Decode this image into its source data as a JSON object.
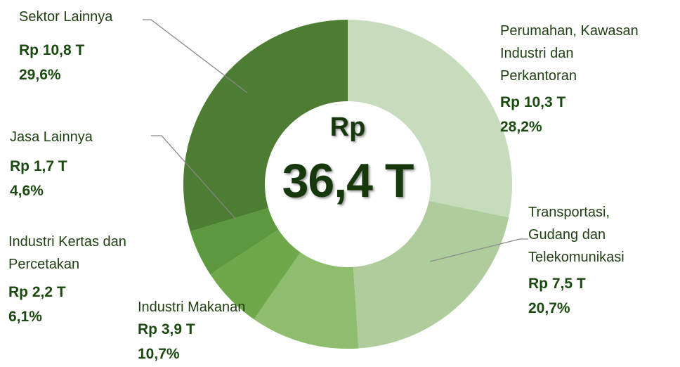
{
  "chart_data": {
    "type": "donut",
    "categories": [
      "Perumahan, Kawasan\nIndustri dan\nPerkantoran",
      "Transportasi,\nGudang dan\nTelekomunikasi",
      "Industri Makanan",
      "Industri Kertas dan\nPercetakan",
      "Jasa Lainnya",
      "Sektor Lainnya"
    ],
    "values": [
      28.2,
      20.7,
      10.7,
      6.1,
      4.6,
      29.6
    ],
    "value_labels": [
      "28,2%",
      "20,7%",
      "10,7%",
      "6,1%",
      "4,6%",
      "29,6%"
    ],
    "amounts": [
      10.3,
      7.5,
      3.9,
      2.2,
      1.7,
      10.8
    ],
    "amount_labels": [
      "Rp 10,3 T",
      "Rp 7,5 T",
      "Rp 3,9 T",
      "Rp 2,2 T",
      "Rp 1,7 T",
      "Rp 10,8 T"
    ],
    "colors": [
      "#c6dcbc",
      "#afcd9c",
      "#8ebe6d",
      "#6ea84a",
      "#5c993e",
      "#4d7c33"
    ],
    "center_label": [
      "Rp",
      "36,4 T"
    ]
  }
}
